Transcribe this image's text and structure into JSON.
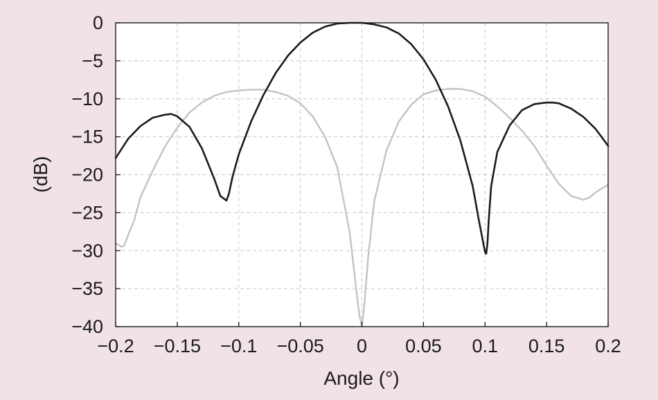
{
  "chart_data": {
    "type": "line",
    "title": "",
    "xlabel": "Angle (°)",
    "ylabel": "(dB)",
    "xlim": [
      -0.2,
      0.2
    ],
    "ylim": [
      -40,
      0
    ],
    "xticks": [
      -0.2,
      -0.15,
      -0.1,
      -0.05,
      0,
      0.05,
      0.1,
      0.15,
      0.2
    ],
    "xtick_labels": [
      "−0.2",
      "−0.15",
      "−0.1",
      "−0.05",
      "0",
      "0.05",
      "0.1",
      "0.15",
      "0.2"
    ],
    "yticks": [
      0,
      -5,
      -10,
      -15,
      -20,
      -25,
      -30,
      -35,
      -40
    ],
    "ytick_labels": [
      "0",
      "−5",
      "−10",
      "−15",
      "−20",
      "−25",
      "−30",
      "−35",
      "−40"
    ],
    "grid": true,
    "series": [
      {
        "color": "#1a1a1a",
        "x": [
          -0.2,
          -0.19,
          -0.18,
          -0.17,
          -0.16,
          -0.155,
          -0.15,
          -0.14,
          -0.13,
          -0.12,
          -0.115,
          -0.11,
          -0.108,
          -0.105,
          -0.1,
          -0.09,
          -0.08,
          -0.07,
          -0.06,
          -0.05,
          -0.04,
          -0.03,
          -0.02,
          -0.01,
          0,
          0.01,
          0.02,
          0.03,
          0.04,
          0.05,
          0.06,
          0.07,
          0.08,
          0.09,
          0.095,
          0.1,
          0.101,
          0.102,
          0.103,
          0.105,
          0.11,
          0.12,
          0.13,
          0.14,
          0.15,
          0.155,
          0.16,
          0.17,
          0.18,
          0.19,
          0.2
        ],
        "values": [
          -17.8,
          -15.3,
          -13.6,
          -12.5,
          -12.1,
          -12.0,
          -12.3,
          -13.7,
          -16.5,
          -20.5,
          -22.8,
          -23.4,
          -22.5,
          -20.2,
          -17.3,
          -13.0,
          -9.5,
          -6.6,
          -4.3,
          -2.6,
          -1.3,
          -0.5,
          -0.1,
          0.0,
          0.0,
          -0.2,
          -0.6,
          -1.4,
          -2.8,
          -4.8,
          -7.5,
          -11.0,
          -15.5,
          -21.5,
          -26.0,
          -30.2,
          -30.4,
          -29.0,
          -26.0,
          -21.5,
          -17.0,
          -13.5,
          -11.5,
          -10.7,
          -10.5,
          -10.5,
          -10.6,
          -11.3,
          -12.4,
          -14.0,
          -16.2
        ]
      },
      {
        "color": "#c3c3c3",
        "x": [
          -0.2,
          -0.195,
          -0.193,
          -0.19,
          -0.185,
          -0.18,
          -0.17,
          -0.16,
          -0.15,
          -0.14,
          -0.13,
          -0.12,
          -0.11,
          -0.1,
          -0.09,
          -0.08,
          -0.07,
          -0.06,
          -0.05,
          -0.04,
          -0.03,
          -0.02,
          -0.01,
          -0.005,
          -0.002,
          0,
          0.002,
          0.005,
          0.01,
          0.02,
          0.03,
          0.04,
          0.05,
          0.06,
          0.07,
          0.08,
          0.09,
          0.1,
          0.11,
          0.12,
          0.13,
          0.14,
          0.15,
          0.16,
          0.17,
          0.18,
          0.185,
          0.19,
          0.2
        ],
        "values": [
          -29.0,
          -29.5,
          -29.3,
          -28.0,
          -26.0,
          -23.0,
          -19.5,
          -16.3,
          -13.8,
          -11.8,
          -10.5,
          -9.6,
          -9.1,
          -8.9,
          -8.8,
          -8.8,
          -9.1,
          -9.6,
          -10.6,
          -12.3,
          -15.0,
          -19.0,
          -27.5,
          -34.5,
          -38.5,
          -40.0,
          -37.0,
          -31.0,
          -23.5,
          -16.8,
          -13.0,
          -10.8,
          -9.4,
          -8.9,
          -8.7,
          -8.7,
          -9.0,
          -9.7,
          -11.0,
          -12.5,
          -14.2,
          -16.2,
          -18.8,
          -21.2,
          -22.8,
          -23.3,
          -23.0,
          -22.3,
          -21.3
        ]
      }
    ]
  }
}
